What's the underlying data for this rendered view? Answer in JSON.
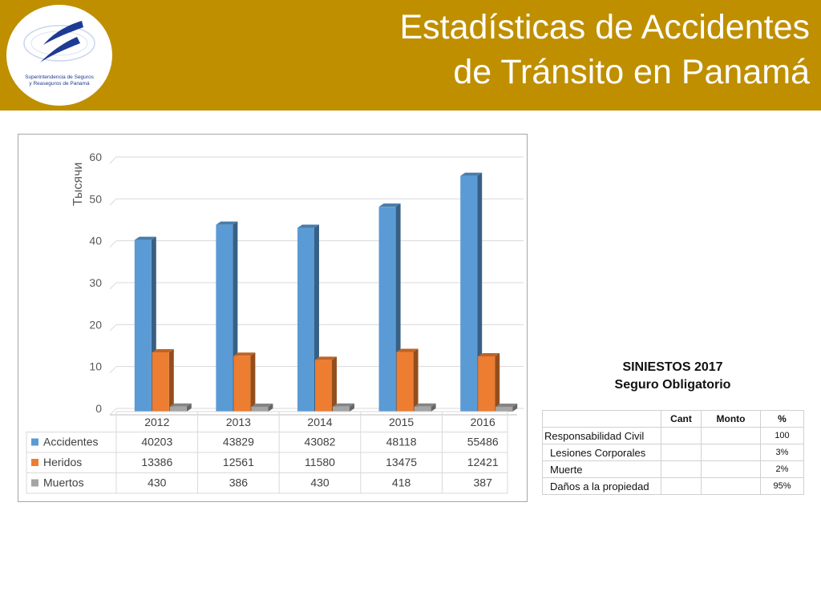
{
  "header": {
    "title_line1": "Estadísticas de Accidentes",
    "title_line2": "de Tránsito en Panamá",
    "logo_line1": "Superintendencia de Seguros",
    "logo_line2": "y Reaseguros de Panamá",
    "logo_icon": "stylized-blue-s-swoosh",
    "color_bar": "#bf8f00"
  },
  "chart_data": {
    "type": "bar",
    "ylabel": "Тысячи",
    "ylim": [
      0,
      60
    ],
    "yticks": [
      0,
      10,
      20,
      30,
      40,
      50,
      60
    ],
    "grid": true,
    "legend": "left data table",
    "categories": [
      "2012",
      "2013",
      "2014",
      "2015",
      "2016"
    ],
    "series": [
      {
        "name": "Accidentes",
        "color": "#5b9bd5",
        "values": [
          40203,
          43829,
          43082,
          48118,
          55486
        ]
      },
      {
        "name": "Heridos",
        "color": "#ed7d31",
        "values": [
          13386,
          12561,
          11580,
          13475,
          12421
        ]
      },
      {
        "name": "Muertos",
        "color": "#a5a5a5",
        "values": [
          430,
          386,
          430,
          418,
          387
        ]
      }
    ]
  },
  "siniestros": {
    "title": "SINIESTOS 2017",
    "subtitle": "Seguro Obligatorio",
    "headers": [
      "",
      "Cant",
      "Monto",
      "%"
    ],
    "rows": [
      {
        "label": "Responsabilidad Civil",
        "cant": "",
        "monto": "",
        "pct": "100"
      },
      {
        "label": "Lesiones Corporales",
        "cant": "",
        "monto": "",
        "pct": "3%"
      },
      {
        "label": "Muerte",
        "cant": "",
        "monto": "",
        "pct": "2%"
      },
      {
        "label": "Daños a la propiedad",
        "cant": "",
        "monto": "",
        "pct": "95%"
      }
    ]
  }
}
